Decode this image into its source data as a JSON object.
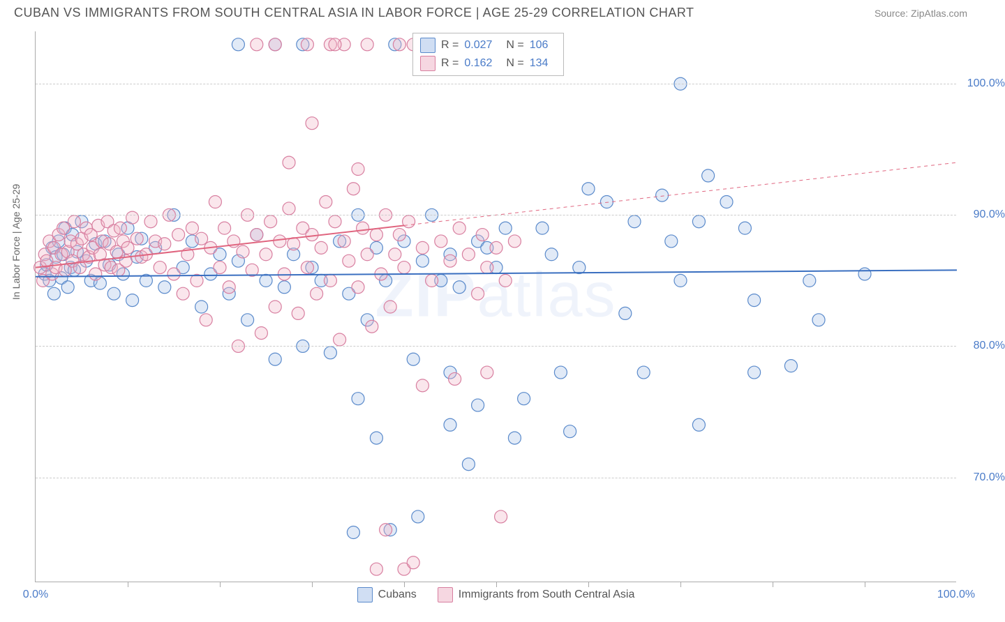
{
  "header": {
    "title": "CUBAN VS IMMIGRANTS FROM SOUTH CENTRAL ASIA IN LABOR FORCE | AGE 25-29 CORRELATION CHART",
    "source": "Source: ZipAtlas.com"
  },
  "watermark": {
    "bold": "ZIP",
    "light": "atlas"
  },
  "chart": {
    "type": "scatter",
    "ylabel": "In Labor Force | Age 25-29",
    "xlim": [
      0,
      100
    ],
    "ylim": [
      62,
      104
    ],
    "y_ticks": [
      70,
      80,
      90,
      100
    ],
    "y_tick_labels": [
      "70.0%",
      "80.0%",
      "90.0%",
      "100.0%"
    ],
    "x_tick_label_left": "0.0%",
    "x_tick_label_right": "100.0%",
    "x_minor_ticks": [
      10,
      20,
      30,
      40,
      50,
      60,
      70,
      80,
      90
    ],
    "grid_color": "#cccccc",
    "axis_color": "#aaaaaa",
    "background_color": "#ffffff",
    "marker_radius": 9,
    "marker_opacity": 0.35,
    "series": [
      {
        "name": "Cubans",
        "color_fill": "#a8c4e8",
        "color_stroke": "#5a8acb",
        "R": "0.027",
        "N": "106",
        "trend": {
          "y_at_x0": 85.3,
          "y_at_x100": 85.8,
          "solid_until_x": 100,
          "color": "#3a6fc0",
          "width": 2
        },
        "points": [
          [
            1,
            85.5
          ],
          [
            1.2,
            86.2
          ],
          [
            1.5,
            85
          ],
          [
            1.8,
            87.5
          ],
          [
            2,
            84
          ],
          [
            2.2,
            86.8
          ],
          [
            2.5,
            88
          ],
          [
            2.8,
            85.2
          ],
          [
            3,
            87
          ],
          [
            3.2,
            89
          ],
          [
            3.5,
            84.5
          ],
          [
            3.8,
            86
          ],
          [
            4,
            88.5
          ],
          [
            4.2,
            85.8
          ],
          [
            4.5,
            87.2
          ],
          [
            5,
            89.5
          ],
          [
            5.5,
            86.5
          ],
          [
            6,
            85
          ],
          [
            6.5,
            87.8
          ],
          [
            7,
            84.8
          ],
          [
            7.5,
            88
          ],
          [
            8,
            86.2
          ],
          [
            8.5,
            84
          ],
          [
            9,
            87
          ],
          [
            9.5,
            85.5
          ],
          [
            10,
            89
          ],
          [
            10.5,
            83.5
          ],
          [
            11,
            86.8
          ],
          [
            11.5,
            88.2
          ],
          [
            12,
            85
          ],
          [
            13,
            87.5
          ],
          [
            14,
            84.5
          ],
          [
            15,
            90
          ],
          [
            16,
            86
          ],
          [
            17,
            88
          ],
          [
            18,
            83
          ],
          [
            19,
            85.5
          ],
          [
            20,
            87
          ],
          [
            21,
            84
          ],
          [
            22,
            86.5
          ],
          [
            22,
            103
          ],
          [
            23,
            82
          ],
          [
            24,
            88.5
          ],
          [
            25,
            85
          ],
          [
            26,
            79
          ],
          [
            26,
            103
          ],
          [
            27,
            84.5
          ],
          [
            28,
            87
          ],
          [
            29,
            80
          ],
          [
            29,
            103
          ],
          [
            30,
            86
          ],
          [
            31,
            85
          ],
          [
            32,
            79.5
          ],
          [
            33,
            88
          ],
          [
            34,
            84
          ],
          [
            34.5,
            65.8
          ],
          [
            35,
            90
          ],
          [
            35,
            76
          ],
          [
            36,
            82
          ],
          [
            37,
            87.5
          ],
          [
            37,
            73
          ],
          [
            38,
            85
          ],
          [
            38.5,
            66
          ],
          [
            39,
            103
          ],
          [
            40,
            88
          ],
          [
            41,
            79
          ],
          [
            41.5,
            67
          ],
          [
            42,
            86.5
          ],
          [
            43,
            90
          ],
          [
            44,
            85
          ],
          [
            45,
            87
          ],
          [
            45,
            78
          ],
          [
            45,
            74
          ],
          [
            46,
            84.5
          ],
          [
            47,
            71
          ],
          [
            48,
            88
          ],
          [
            48,
            75.5
          ],
          [
            49,
            87.5
          ],
          [
            50,
            86
          ],
          [
            51,
            89
          ],
          [
            52,
            73
          ],
          [
            53,
            76
          ],
          [
            55,
            89
          ],
          [
            56,
            87
          ],
          [
            57,
            78
          ],
          [
            58,
            73.5
          ],
          [
            59,
            86
          ],
          [
            60,
            92
          ],
          [
            62,
            91
          ],
          [
            64,
            82.5
          ],
          [
            65,
            89.5
          ],
          [
            66,
            78
          ],
          [
            68,
            91.5
          ],
          [
            69,
            88
          ],
          [
            70,
            85
          ],
          [
            72,
            89.5
          ],
          [
            72,
            74
          ],
          [
            73,
            93
          ],
          [
            75,
            91
          ],
          [
            77,
            89
          ],
          [
            78,
            83.5
          ],
          [
            78,
            78
          ],
          [
            82,
            78.5
          ],
          [
            84,
            85
          ],
          [
            85,
            82
          ],
          [
            90,
            85.5
          ],
          [
            70,
            100
          ]
        ]
      },
      {
        "name": "Immigrants from South Central Asia",
        "color_fill": "#f0b8c8",
        "color_stroke": "#d87fa0",
        "R": "0.162",
        "N": "134",
        "trend": {
          "y_at_x0": 86,
          "y_at_x100": 94,
          "solid_until_x": 40,
          "color": "#e0657f",
          "width": 2
        },
        "points": [
          [
            0.5,
            86
          ],
          [
            0.8,
            85
          ],
          [
            1,
            87
          ],
          [
            1.2,
            86.5
          ],
          [
            1.5,
            88
          ],
          [
            1.8,
            85.5
          ],
          [
            2,
            87.5
          ],
          [
            2.2,
            86
          ],
          [
            2.5,
            88.5
          ],
          [
            2.8,
            87
          ],
          [
            3,
            89
          ],
          [
            3.2,
            85.8
          ],
          [
            3.5,
            87.2
          ],
          [
            3.8,
            88
          ],
          [
            4,
            86.5
          ],
          [
            4.2,
            89.5
          ],
          [
            4.5,
            87.8
          ],
          [
            4.8,
            86
          ],
          [
            5,
            88.2
          ],
          [
            5.2,
            87
          ],
          [
            5.5,
            89
          ],
          [
            5.8,
            86.8
          ],
          [
            6,
            88.5
          ],
          [
            6.2,
            87.5
          ],
          [
            6.5,
            85.5
          ],
          [
            6.8,
            89.2
          ],
          [
            7,
            87
          ],
          [
            7.2,
            88
          ],
          [
            7.5,
            86.2
          ],
          [
            7.8,
            89.5
          ],
          [
            8,
            87.8
          ],
          [
            8.2,
            86
          ],
          [
            8.5,
            88.8
          ],
          [
            8.8,
            87.2
          ],
          [
            9,
            85.8
          ],
          [
            9.2,
            89
          ],
          [
            9.5,
            88
          ],
          [
            9.8,
            86.5
          ],
          [
            10,
            87.5
          ],
          [
            10.5,
            89.8
          ],
          [
            11,
            88.2
          ],
          [
            11.5,
            86.8
          ],
          [
            12,
            87
          ],
          [
            12.5,
            89.5
          ],
          [
            13,
            88
          ],
          [
            13.5,
            86
          ],
          [
            14,
            87.8
          ],
          [
            14.5,
            90
          ],
          [
            15,
            85.5
          ],
          [
            15.5,
            88.5
          ],
          [
            16,
            84
          ],
          [
            16.5,
            87
          ],
          [
            17,
            89
          ],
          [
            17.5,
            85
          ],
          [
            18,
            88.2
          ],
          [
            18.5,
            82
          ],
          [
            19,
            87.5
          ],
          [
            19.5,
            91
          ],
          [
            20,
            86
          ],
          [
            20.5,
            89
          ],
          [
            21,
            84.5
          ],
          [
            21.5,
            88
          ],
          [
            22,
            80
          ],
          [
            22.5,
            87.2
          ],
          [
            23,
            90
          ],
          [
            23.5,
            85.8
          ],
          [
            24,
            88.5
          ],
          [
            24,
            103
          ],
          [
            24.5,
            81
          ],
          [
            25,
            87
          ],
          [
            25.5,
            89.5
          ],
          [
            26,
            83
          ],
          [
            26,
            103
          ],
          [
            26.5,
            88
          ],
          [
            27,
            85.5
          ],
          [
            27.5,
            94
          ],
          [
            27.5,
            90.5
          ],
          [
            28,
            87.8
          ],
          [
            28.5,
            82.5
          ],
          [
            29,
            89
          ],
          [
            29.5,
            86
          ],
          [
            29.5,
            103
          ],
          [
            30,
            88.5
          ],
          [
            30,
            97
          ],
          [
            30.5,
            84
          ],
          [
            31,
            87.5
          ],
          [
            31.5,
            91
          ],
          [
            32,
            85
          ],
          [
            32,
            103
          ],
          [
            32.5,
            89.5
          ],
          [
            33,
            80.5
          ],
          [
            33.5,
            88
          ],
          [
            33.5,
            103
          ],
          [
            34,
            86.5
          ],
          [
            34.5,
            92
          ],
          [
            35,
            84.5
          ],
          [
            35,
            93.5
          ],
          [
            35.5,
            89
          ],
          [
            36,
            87
          ],
          [
            36.5,
            81.5
          ],
          [
            37,
            88.5
          ],
          [
            37,
            63
          ],
          [
            37.5,
            85.5
          ],
          [
            38,
            90
          ],
          [
            38.5,
            83
          ],
          [
            39,
            87
          ],
          [
            39.5,
            88.5
          ],
          [
            40,
            86
          ],
          [
            40,
            63
          ],
          [
            40.5,
            89.5
          ],
          [
            41,
            63.5
          ],
          [
            42,
            87.5
          ],
          [
            42,
            77
          ],
          [
            43,
            85
          ],
          [
            43.5,
            103
          ],
          [
            44,
            88
          ],
          [
            45,
            86.5
          ],
          [
            45.5,
            77.5
          ],
          [
            46,
            89
          ],
          [
            47,
            87
          ],
          [
            48,
            84
          ],
          [
            48.5,
            88.5
          ],
          [
            49,
            86
          ],
          [
            49,
            78
          ],
          [
            50,
            87.5
          ],
          [
            50.5,
            67
          ],
          [
            51,
            85
          ],
          [
            52,
            88
          ],
          [
            42.5,
            103
          ],
          [
            39.5,
            103
          ],
          [
            41,
            103
          ],
          [
            32.5,
            103
          ],
          [
            36,
            103
          ],
          [
            38,
            66
          ]
        ]
      }
    ]
  },
  "legend": {
    "item1": "Cubans",
    "item2": "Immigrants from South Central Asia"
  }
}
